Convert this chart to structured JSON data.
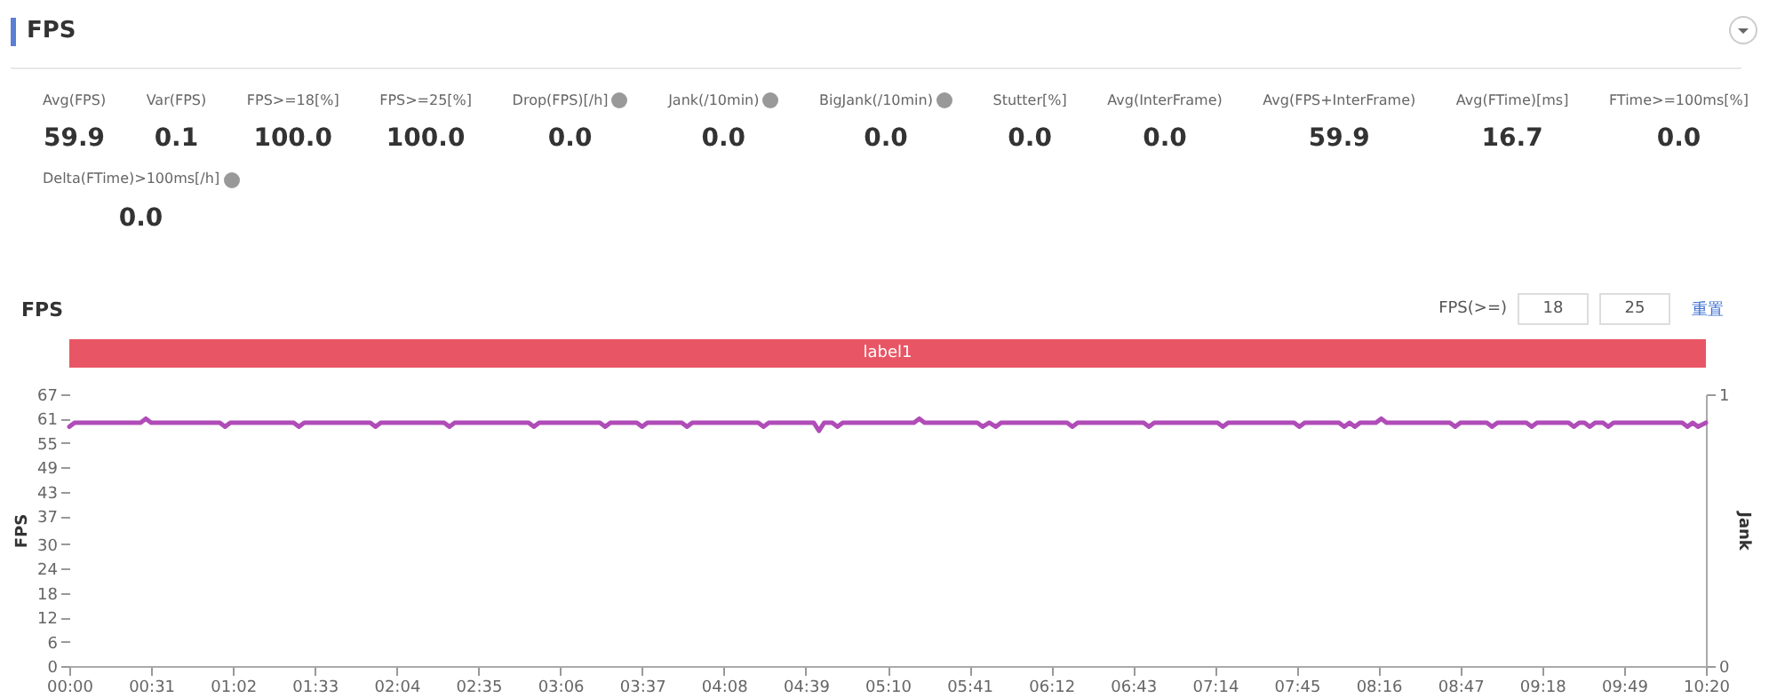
{
  "chart_data": [
    {
      "type": "other",
      "title": "FPS",
      "annotations": [
        "Avg(FPS)",
        "59.9",
        "Var(FPS)",
        "0.1",
        "FPS>=18[%]",
        "100.0",
        "FPS>=25[%]",
        "100.0",
        "Drop(FPS)[/h]",
        "0.0",
        "Jank(/10min)",
        "0.0",
        "BigJank(/10min)",
        "0.0",
        "Stutter[%]",
        "0.0",
        "Avg(InterFrame)",
        "0.0",
        "Avg(FPS+InterFrame)",
        "59.9",
        "Avg(FTime)[ms]",
        "16.7",
        "FTime>=100ms[%]",
        "0.0",
        "Delta(FTime)>100ms[/h]",
        "0.0"
      ]
    },
    {
      "type": "line",
      "title": "FPS",
      "ylabel": "FPS",
      "y2label": "Jank",
      "annotations": [
        "label1",
        "FPS(>=)",
        "18",
        "25",
        "重置"
      ],
      "xlim": [
        0,
        620
      ],
      "ylim": [
        0,
        67
      ],
      "y2lim": [
        0,
        1
      ],
      "y2ticks": [
        0,
        1
      ],
      "xticks": [
        {
          "value": 0,
          "label": "00:00"
        },
        {
          "value": 31,
          "label": "00:31"
        },
        {
          "value": 62,
          "label": "01:02"
        },
        {
          "value": 93,
          "label": "01:33"
        },
        {
          "value": 124,
          "label": "02:04"
        },
        {
          "value": 155,
          "label": "02:35"
        },
        {
          "value": 186,
          "label": "03:06"
        },
        {
          "value": 217,
          "label": "03:37"
        },
        {
          "value": 248,
          "label": "04:08"
        },
        {
          "value": 279,
          "label": "04:39"
        },
        {
          "value": 310,
          "label": "05:10"
        },
        {
          "value": 341,
          "label": "05:41"
        },
        {
          "value": 372,
          "label": "06:12"
        },
        {
          "value": 403,
          "label": "06:43"
        },
        {
          "value": 434,
          "label": "07:14"
        },
        {
          "value": 465,
          "label": "07:45"
        },
        {
          "value": 496,
          "label": "08:16"
        },
        {
          "value": 527,
          "label": "08:47"
        },
        {
          "value": 558,
          "label": "09:18"
        },
        {
          "value": 589,
          "label": "09:49"
        },
        {
          "value": 620,
          "label": "10:20"
        }
      ],
      "yticks": [
        0,
        6,
        12,
        18,
        24,
        30,
        37,
        43,
        49,
        55,
        61,
        67
      ],
      "line_style": "solid",
      "series": [
        {
          "color": "#b04cb8",
          "x": [
            0,
            2,
            27,
            29,
            31,
            57,
            59,
            61,
            85,
            87,
            89,
            114,
            116,
            118,
            142,
            144,
            146,
            174,
            176,
            178,
            201,
            203,
            205,
            215,
            217,
            219,
            232,
            234,
            236,
            261,
            263,
            265,
            282,
            284,
            286,
            289,
            291,
            293,
            320,
            322,
            324,
            344,
            346,
            348.5,
            351,
            353,
            378,
            380,
            382,
            407,
            409,
            411,
            435,
            437,
            439,
            464,
            466,
            468,
            481,
            483,
            485,
            487,
            489,
            495,
            497,
            499,
            523,
            525,
            527,
            537,
            539,
            541,
            552,
            554,
            556,
            568,
            570,
            572,
            574,
            576,
            578,
            581,
            583,
            585,
            611,
            613,
            615,
            617,
            620
          ],
          "values": [
            59,
            60,
            60,
            61,
            60,
            60,
            59,
            60,
            60,
            59,
            60,
            60,
            59,
            60,
            60,
            59,
            60,
            60,
            59,
            60,
            60,
            59,
            60,
            60,
            59,
            60,
            60,
            59,
            60,
            60,
            59,
            60,
            60,
            58,
            60,
            60,
            59,
            60,
            60,
            61,
            60,
            60,
            59,
            60,
            59,
            60,
            60,
            59,
            60,
            60,
            59,
            60,
            60,
            59,
            60,
            60,
            59,
            60,
            60,
            59,
            60,
            59,
            60,
            60,
            61,
            60,
            60,
            59,
            60,
            60,
            59,
            60,
            60,
            59,
            60,
            60,
            59,
            60,
            60,
            59,
            60,
            60,
            59,
            60,
            60,
            59,
            60,
            59,
            60
          ]
        }
      ]
    }
  ]
}
